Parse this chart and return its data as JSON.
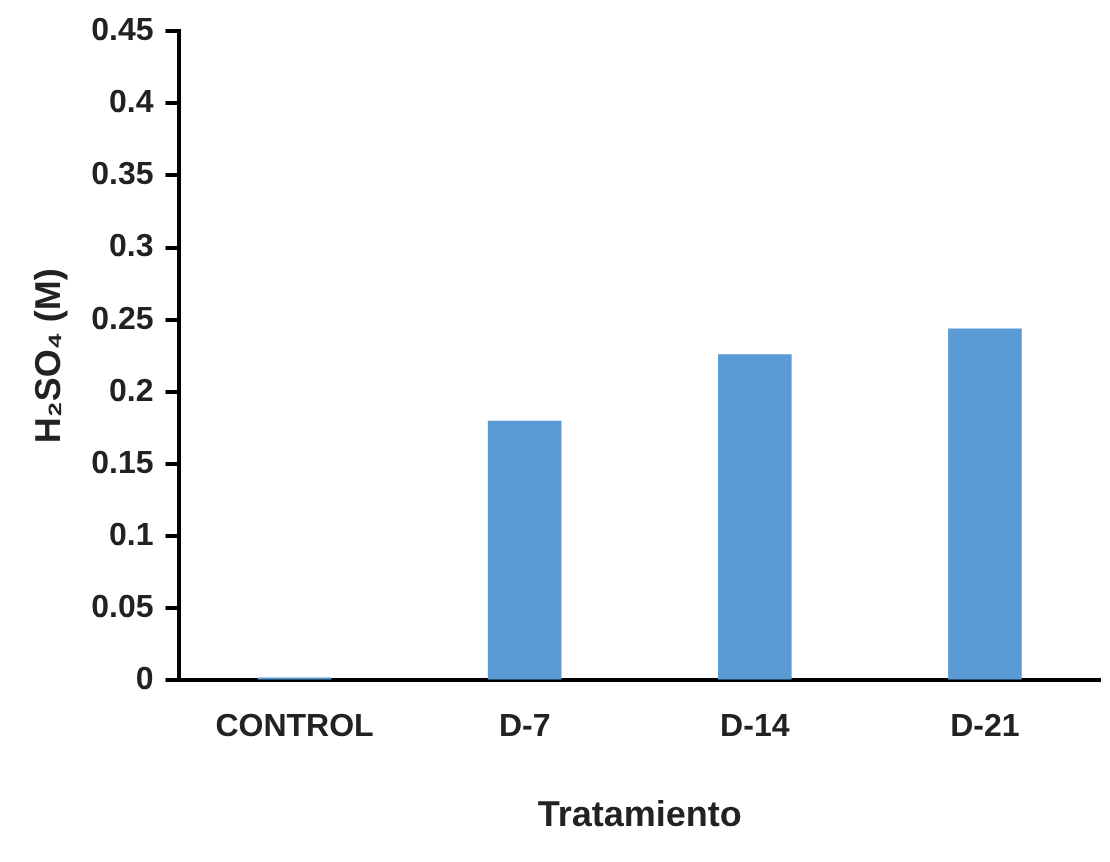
{
  "chart_data": {
    "type": "bar",
    "xlabel": "Tratamiento",
    "ylabel": "H₂SO₄ (M)",
    "categories": [
      "CONTROL",
      "D-7",
      "D-14",
      "D-21"
    ],
    "values": [
      0.002,
      0.18,
      0.226,
      0.244
    ],
    "color": "#5b9bd5",
    "ylim": [
      0,
      0.45
    ],
    "yticks": [
      0,
      0.05,
      0.1,
      0.15,
      0.2,
      0.25,
      0.3,
      0.35,
      0.4,
      0.45
    ],
    "grid": false,
    "legend": false
  }
}
